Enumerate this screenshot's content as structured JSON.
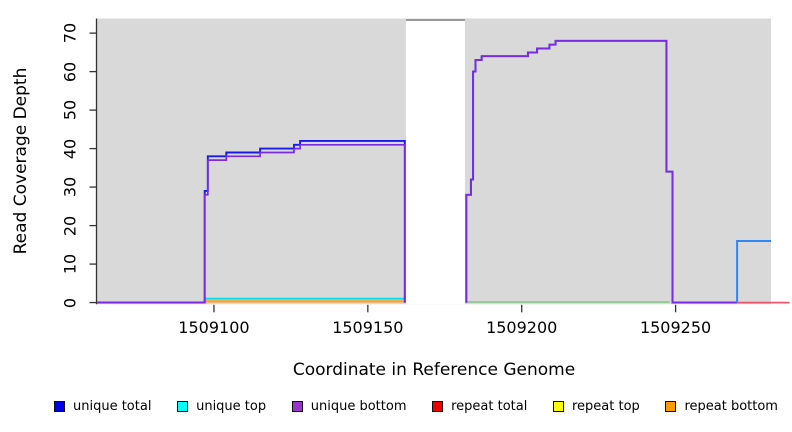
{
  "figure": {
    "background": "#ffffff",
    "plot_area_background": "#d9d9d9",
    "axis_color": "#333333"
  },
  "chart_data": {
    "type": "step-line",
    "title": "",
    "xlabel": "Coordinate in Reference Genome",
    "ylabel": "Read Coverage Depth",
    "xlim": [
      1509062,
      1509281
    ],
    "ylim": [
      -0.45,
      73.8
    ],
    "x_ticks": [
      1509100,
      1509150,
      1509200,
      1509250
    ],
    "y_ticks": [
      0,
      10,
      20,
      30,
      40,
      50,
      60,
      70
    ],
    "grid": false,
    "plot_bg": "#d9d9d9",
    "offscale_band": {
      "x_start": 1509162,
      "x_end": 1509182,
      "cap_value": 73.4,
      "cap_color": "#999999",
      "fill": "#ffffff",
      "note": "coverage exceeds y-axis range; region masked white with gray cap line"
    },
    "series": [
      {
        "name": "unique top",
        "color": "#00e0ee",
        "width": 1.8,
        "segments": [
          [
            [
              1509097,
              1
            ],
            [
              1509162,
              1
            ]
          ]
        ]
      },
      {
        "name": "repeat bottom",
        "color": "#ffa01e",
        "width": 2.2,
        "segments": [
          [
            [
              1509097,
              0.3
            ],
            [
              1509162,
              0.3
            ]
          ]
        ]
      },
      {
        "name": "unique top + repeat top (overlap)",
        "color": "#7cc87f",
        "width": 1.6,
        "segments": [
          [
            [
              1509182,
              0.15
            ],
            [
              1509248,
              0.15
            ]
          ]
        ]
      },
      {
        "name": "unique total",
        "color": "#1a1ae6",
        "width": 1.9,
        "segments": [
          [
            [
              1509062,
              0
            ],
            [
              1509097,
              0
            ],
            [
              1509097,
              29
            ],
            [
              1509098,
              29
            ],
            [
              1509098,
              38
            ],
            [
              1509104,
              38
            ],
            [
              1509104,
              39
            ],
            [
              1509115,
              39
            ],
            [
              1509115,
              40
            ],
            [
              1509126,
              40
            ],
            [
              1509126,
              41
            ],
            [
              1509128,
              41
            ],
            [
              1509128,
              42
            ],
            [
              1509162,
              42
            ],
            [
              1509162,
              0
            ]
          ],
          [
            [
              1509182,
              0
            ],
            [
              1509182,
              28
            ],
            [
              1509183.5,
              28
            ],
            [
              1509183.5,
              32
            ],
            [
              1509184.2,
              32
            ],
            [
              1509184.2,
              60
            ],
            [
              1509185,
              60
            ],
            [
              1509185,
              63
            ],
            [
              1509187,
              63
            ],
            [
              1509187,
              64
            ],
            [
              1509202,
              64
            ],
            [
              1509202,
              65
            ],
            [
              1509205,
              65
            ],
            [
              1509205,
              66
            ],
            [
              1509209,
              66
            ],
            [
              1509209,
              67
            ],
            [
              1509211,
              67
            ],
            [
              1509211,
              68
            ],
            [
              1509247,
              68
            ],
            [
              1509247,
              34
            ],
            [
              1509249,
              34
            ],
            [
              1509249,
              0
            ],
            [
              1509270,
              0
            ]
          ]
        ]
      },
      {
        "name": "unique bottom",
        "color": "#7a2be2",
        "width": 1.7,
        "segments": [
          [
            [
              1509062,
              0
            ],
            [
              1509097,
              0
            ],
            [
              1509097,
              28
            ],
            [
              1509098,
              28
            ],
            [
              1509098,
              37
            ],
            [
              1509104,
              37
            ],
            [
              1509104,
              38
            ],
            [
              1509115,
              38
            ],
            [
              1509115,
              39
            ],
            [
              1509126,
              39
            ],
            [
              1509126,
              40
            ],
            [
              1509128,
              40
            ],
            [
              1509128,
              41
            ],
            [
              1509162,
              41
            ],
            [
              1509162,
              0
            ]
          ],
          [
            [
              1509182,
              0
            ],
            [
              1509182,
              28
            ],
            [
              1509183.5,
              28
            ],
            [
              1509183.5,
              32
            ],
            [
              1509184.2,
              32
            ],
            [
              1509184.2,
              60
            ],
            [
              1509185,
              60
            ],
            [
              1509185,
              63
            ],
            [
              1509187,
              63
            ],
            [
              1509187,
              64
            ],
            [
              1509202,
              64
            ],
            [
              1509202,
              65
            ],
            [
              1509205,
              65
            ],
            [
              1509205,
              66
            ],
            [
              1509209,
              66
            ],
            [
              1509209,
              67
            ],
            [
              1509211,
              67
            ],
            [
              1509211,
              68
            ],
            [
              1509247,
              68
            ],
            [
              1509247,
              34
            ],
            [
              1509249,
              34
            ],
            [
              1509249,
              0
            ],
            [
              1509270,
              0
            ]
          ]
        ]
      },
      {
        "name": "unique total + unique top (overlap)",
        "color": "#2f86f6",
        "width": 2.0,
        "segments": [
          [
            [
              1509270,
              0
            ],
            [
              1509270,
              16
            ],
            [
              1509281,
              16
            ]
          ]
        ]
      },
      {
        "name": "repeat total",
        "color": "#e8566b",
        "width": 1.8,
        "segments": [
          [
            [
              1509270,
              0
            ],
            [
              1509287,
              0
            ]
          ]
        ]
      }
    ],
    "legend": [
      {
        "label": "unique total",
        "color": "#0000ee"
      },
      {
        "label": "unique top",
        "color": "#00ffff"
      },
      {
        "label": "unique bottom",
        "color": "#9a32cc"
      },
      {
        "label": "repeat total",
        "color": "#ee0000"
      },
      {
        "label": "repeat top",
        "color": "#ffff00"
      },
      {
        "label": "repeat bottom",
        "color": "#ff9900"
      }
    ],
    "legend_position": "bottom"
  }
}
